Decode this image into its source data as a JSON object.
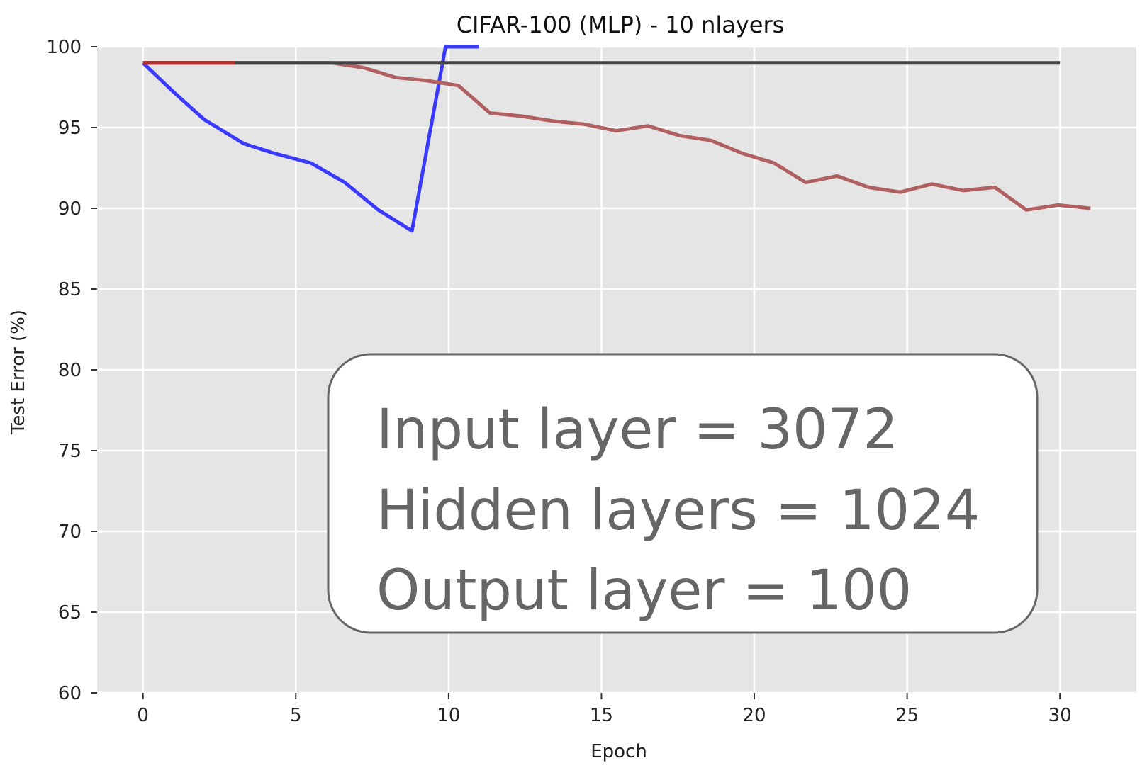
{
  "chart_data": {
    "type": "line",
    "title": "CIFAR-100 (MLP) - 10 nlayers",
    "xlabel": "Epoch",
    "ylabel": "Test Error (%)",
    "xlim": [
      -1.5,
      32.5
    ],
    "ylim": [
      60,
      100
    ],
    "xticks": [
      0,
      5,
      10,
      15,
      20,
      25,
      30
    ],
    "yticks": [
      60,
      65,
      70,
      75,
      80,
      85,
      90,
      95,
      100
    ],
    "grid": true,
    "background": "#e5e5e5",
    "series": [
      {
        "color": "#3a3aff",
        "x": [
          0,
          1,
          2,
          3.3,
          4.3,
          5.5,
          6.6,
          7.7,
          8.8,
          9.9,
          11
        ],
        "y": [
          99,
          97.2,
          95.5,
          94,
          93.4,
          92.8,
          91.6,
          89.9,
          88.6,
          100,
          100
        ]
      },
      {
        "color": "#b06060",
        "x": [
          0,
          1.03,
          2.06,
          3.1,
          4.13,
          5.16,
          6.19,
          7.23,
          8.26,
          9.29,
          10.32,
          11.35,
          12.39,
          13.42,
          14.45,
          15.48,
          16.52,
          17.55,
          18.58,
          19.61,
          20.65,
          21.68,
          22.71,
          23.74,
          24.77,
          25.81,
          26.84,
          27.87,
          28.9,
          29.94,
          31
        ],
        "y": [
          99,
          99,
          99,
          99,
          99,
          99,
          99,
          98.7,
          98.1,
          97.9,
          97.6,
          95.9,
          95.7,
          95.4,
          95.2,
          94.8,
          95.1,
          94.5,
          94.2,
          93.4,
          92.8,
          91.6,
          92,
          91.3,
          91,
          91.5,
          91.1,
          91.3,
          89.9,
          90.2,
          90
        ]
      },
      {
        "color": "#444444",
        "x": [
          0,
          30
        ],
        "y": [
          99,
          99
        ]
      },
      {
        "color": "#b03030",
        "x": [
          0,
          3
        ],
        "y": [
          99,
          99
        ]
      }
    ],
    "annotation": {
      "lines": [
        "Input layer = 3072",
        "Hidden layers = 1024",
        "Output layer = 100"
      ]
    }
  }
}
